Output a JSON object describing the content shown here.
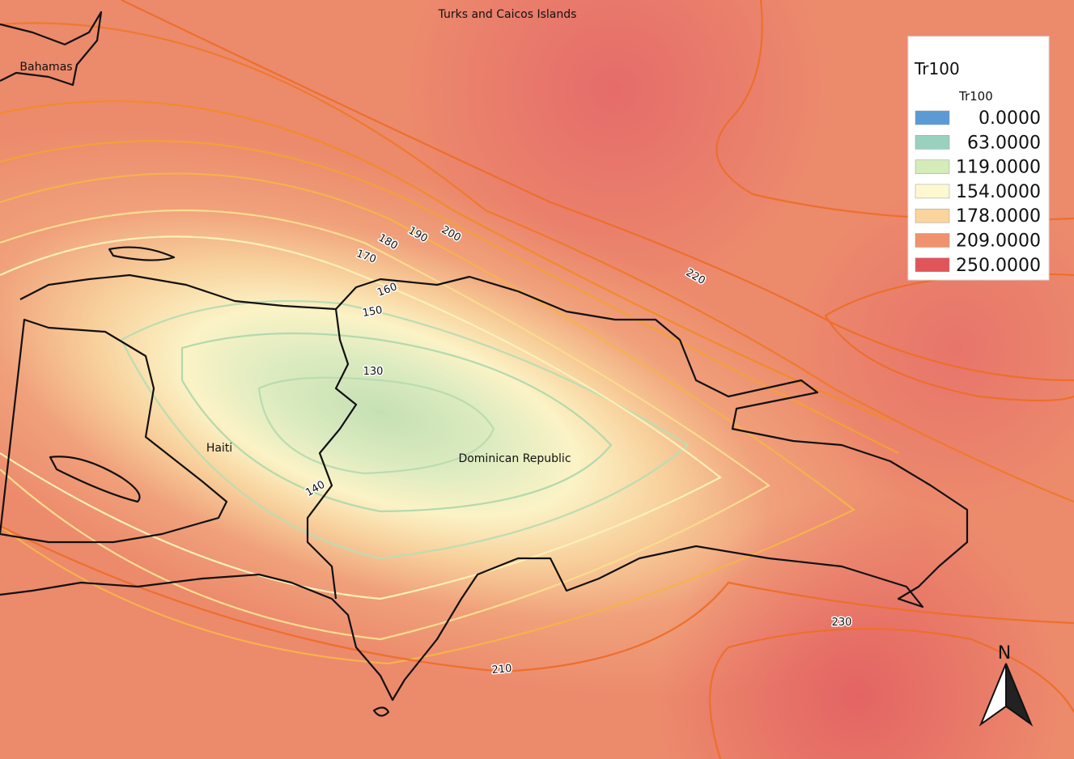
{
  "map": {
    "place_labels": [
      "Turks and Caicos Islands",
      "Bahamas",
      "Haiti",
      "Dominican Republic"
    ],
    "contour_labels": [
      "130",
      "140",
      "150",
      "160",
      "170",
      "180",
      "190",
      "200",
      "220",
      "210",
      "230"
    ],
    "legend": {
      "title": "Tr100",
      "subtitle": "Tr100",
      "items": [
        {
          "label": "0.0000",
          "color": "#5b9bd5"
        },
        {
          "label": "63.0000",
          "color": "#99d1be"
        },
        {
          "label": "119.0000",
          "color": "#d3ecb8"
        },
        {
          "label": "154.0000",
          "color": "#fdf8cf"
        },
        {
          "label": "178.0000",
          "color": "#f9d49c"
        },
        {
          "label": "209.0000",
          "color": "#f0926e"
        },
        {
          "label": "250.0000",
          "color": "#e0555a"
        }
      ]
    },
    "north_label": "N"
  }
}
